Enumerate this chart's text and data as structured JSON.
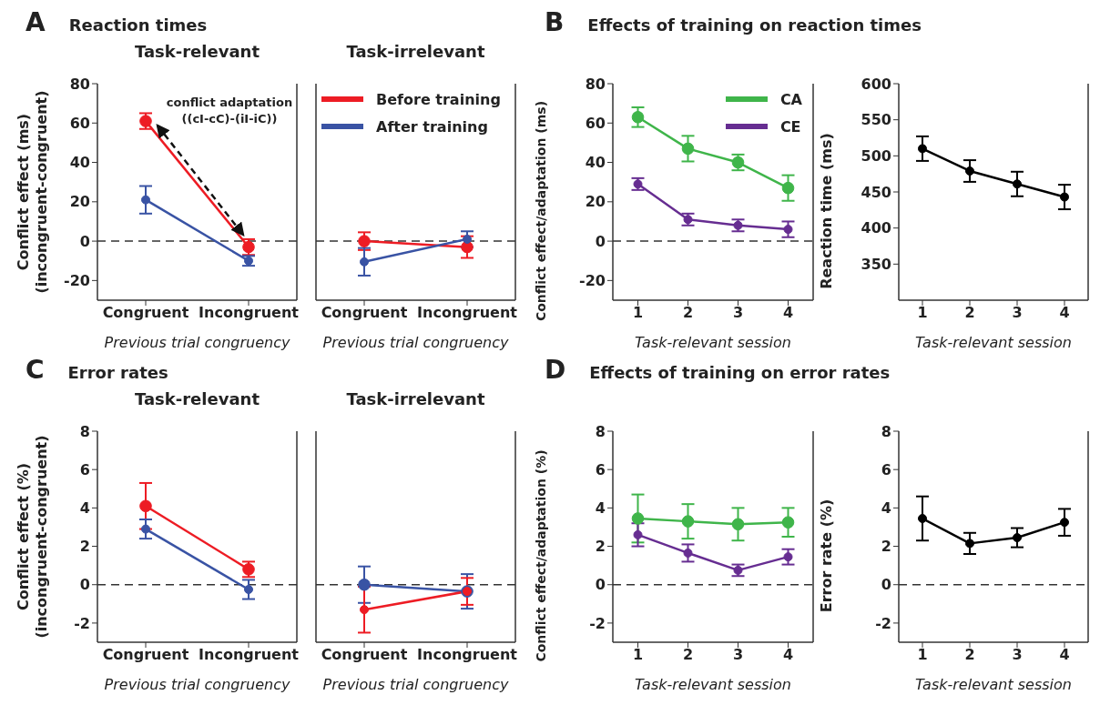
{
  "chart_data": [
    {
      "type": "line",
      "title": "Reaction times",
      "subtitle": "Task-relevant",
      "annotations": [
        "A",
        "conflict adaptation\n((cI-cC)-(iI-iC))"
      ],
      "categories": [
        "Congruent",
        "Incongruent"
      ],
      "xlabel": "Previous trial congruency",
      "ylabel": "Conflict effect (ms)\n(incongruent-congruent)",
      "ylim": [
        -30,
        80
      ],
      "yticks": [
        -20,
        0,
        20,
        40,
        60,
        80
      ],
      "marker": "circle",
      "series": [
        {
          "color": "#ed1c24",
          "values": [
            61,
            -3
          ],
          "errors": [
            4,
            4
          ]
        },
        {
          "color": "#3953a4",
          "values": [
            21,
            -10
          ],
          "errors": [
            7,
            2.5
          ]
        }
      ],
      "ref_lines": [
        {
          "axis": "y",
          "value": 0,
          "color": "#333333",
          "line_style": "dashed"
        }
      ]
    },
    {
      "type": "line",
      "subtitle": "Task-irrelevant",
      "categories": [
        "Congruent",
        "Incongruent"
      ],
      "xlabel": "Previous trial congruency",
      "ylim": [
        -30,
        80
      ],
      "yticks": [
        -20,
        0,
        20,
        40,
        60,
        80
      ],
      "tick_labels": "x",
      "marker": "circle",
      "legend": "top",
      "series": [
        {
          "name": "Before training",
          "color": "#ed1c24",
          "values": [
            0,
            -3
          ],
          "errors": [
            4.5,
            5.5
          ]
        },
        {
          "name": "After training",
          "color": "#3953a4",
          "values": [
            -10.5,
            1
          ],
          "errors": [
            7,
            4
          ]
        }
      ],
      "ref_lines": [
        {
          "axis": "y",
          "value": 0,
          "color": "#333333",
          "line_style": "dashed"
        }
      ]
    },
    {
      "type": "line",
      "title": "Effects of training on reaction times",
      "annotations": [
        "B"
      ],
      "x": [
        1,
        2,
        3,
        4
      ],
      "xlim": [
        0.5,
        4.5
      ],
      "xticks": [
        1,
        2,
        3,
        4
      ],
      "xlabel": "Task-relevant session",
      "ylabel": "Conflict effect/adaptation (ms)",
      "ylim": [
        -30,
        80
      ],
      "yticks": [
        -20,
        0,
        20,
        40,
        60,
        80
      ],
      "marker": "circle",
      "legend": "top right",
      "series": [
        {
          "name": "CA",
          "color": "#3fb54a",
          "values": [
            63,
            47,
            40,
            27
          ],
          "errors": [
            5,
            6.5,
            4,
            6.5
          ]
        },
        {
          "name": "CE",
          "color": "#662d91",
          "values": [
            29,
            11,
            8,
            6
          ],
          "errors": [
            3,
            3,
            3,
            4
          ]
        }
      ],
      "ref_lines": [
        {
          "axis": "y",
          "value": 0,
          "color": "#333333",
          "line_style": "dashed"
        }
      ]
    },
    {
      "type": "line",
      "x": [
        1,
        2,
        3,
        4
      ],
      "xlim": [
        0.5,
        4.5
      ],
      "xticks": [
        1,
        2,
        3,
        4
      ],
      "xlabel": "Task-relevant session",
      "ylabel": "Reaction time (ms)",
      "ylim": [
        300,
        600
      ],
      "yticks": [
        350,
        400,
        450,
        500,
        550,
        600
      ],
      "marker": "circle",
      "series": [
        {
          "color": "#000000",
          "values": [
            510,
            479,
            461,
            443
          ],
          "errors": [
            17,
            15,
            17,
            17
          ]
        }
      ]
    },
    {
      "type": "line",
      "title": "Error rates",
      "subtitle": "Task-relevant",
      "annotations": [
        "C"
      ],
      "categories": [
        "Congruent",
        "Incongruent"
      ],
      "xlabel": "Previous trial congruency",
      "ylabel": "Conflict effect (%)\n(incongruent-congruent)",
      "ylim": [
        -3,
        8
      ],
      "yticks": [
        -2,
        0,
        2,
        4,
        6,
        8
      ],
      "marker": "circle",
      "series": [
        {
          "color": "#ed1c24",
          "values": [
            4.1,
            0.8
          ],
          "errors": [
            1.2,
            0.4
          ]
        },
        {
          "color": "#3953a4",
          "values": [
            2.9,
            -0.25
          ],
          "errors": [
            0.5,
            0.5
          ]
        }
      ],
      "ref_lines": [
        {
          "axis": "y",
          "value": 0,
          "color": "#333333",
          "line_style": "dashed"
        }
      ]
    },
    {
      "type": "line",
      "subtitle": "Task-irrelevant",
      "categories": [
        "Congruent",
        "Incongruent"
      ],
      "xlabel": "Previous trial congruency",
      "ylim": [
        -3,
        8
      ],
      "yticks": [
        -2,
        0,
        2,
        4,
        6,
        8
      ],
      "tick_labels": "x",
      "marker": "circle",
      "series": [
        {
          "color": "#3953a4",
          "values": [
            0,
            -0.35
          ],
          "errors": [
            0.95,
            0.9
          ]
        },
        {
          "color": "#ed1c24",
          "values": [
            -1.3,
            -0.35
          ],
          "errors": [
            1.2,
            0.7
          ]
        }
      ],
      "ref_lines": [
        {
          "axis": "y",
          "value": 0,
          "color": "#333333",
          "line_style": "dashed"
        }
      ]
    },
    {
      "type": "line",
      "title": "Effects of training on error rates",
      "annotations": [
        "D"
      ],
      "x": [
        1,
        2,
        3,
        4
      ],
      "xlim": [
        0.5,
        4.5
      ],
      "xticks": [
        1,
        2,
        3,
        4
      ],
      "xlabel": "Task-relevant session",
      "ylabel": "Conflict effect/adaptation (%)",
      "ylim": [
        -3,
        8
      ],
      "yticks": [
        -2,
        0,
        2,
        4,
        6,
        8
      ],
      "marker": "circle",
      "series": [
        {
          "color": "#3fb54a",
          "values": [
            3.45,
            3.3,
            3.15,
            3.25
          ],
          "errors": [
            1.25,
            0.9,
            0.85,
            0.75
          ]
        },
        {
          "color": "#662d91",
          "values": [
            2.6,
            1.65,
            0.75,
            1.45
          ],
          "errors": [
            0.6,
            0.45,
            0.3,
            0.4
          ]
        }
      ],
      "ref_lines": [
        {
          "axis": "y",
          "value": 0,
          "color": "#333333",
          "line_style": "dashed"
        }
      ]
    },
    {
      "type": "line",
      "x": [
        1,
        2,
        3,
        4
      ],
      "xlim": [
        0.5,
        4.5
      ],
      "xticks": [
        1,
        2,
        3,
        4
      ],
      "xlabel": "Task-relevant session",
      "ylabel": "Error rate (%)",
      "ylim": [
        -3,
        8
      ],
      "yticks": [
        -2,
        0,
        2,
        4,
        6,
        8
      ],
      "marker": "circle",
      "series": [
        {
          "color": "#000000",
          "values": [
            3.45,
            2.15,
            2.45,
            3.25
          ],
          "errors": [
            1.15,
            0.55,
            0.5,
            0.7
          ]
        }
      ],
      "ref_lines": [
        {
          "axis": "y",
          "value": 0,
          "color": "#333333",
          "line_style": "dashed"
        }
      ]
    }
  ]
}
